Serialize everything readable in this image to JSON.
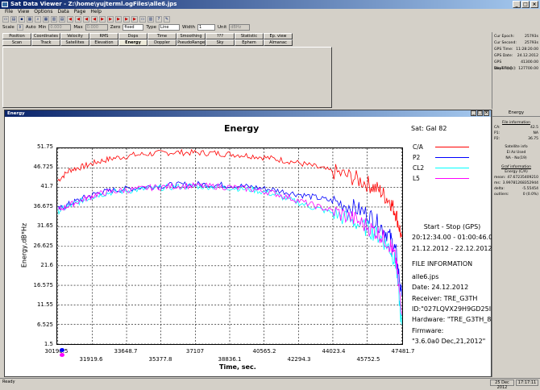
{
  "window": {
    "title": "Sat Data Viewer - Z:\\home\\yujterml.ogFiles\\alle6.jps",
    "min": "_",
    "max": "□",
    "close": "×"
  },
  "menu": [
    "File",
    "View",
    "Options",
    "Data",
    "Page",
    "Help"
  ],
  "toolbar2": {
    "scale_label": "Scale",
    "auto_label": "Auto",
    "min_label": "Min",
    "min_value": "0.000",
    "max_label": "Max",
    "max_value": "0.000",
    "zero_label": "Zero",
    "zero_value": "fixed",
    "type_label": "Type",
    "type_value": "Line",
    "width_label": "Width",
    "width_value": "1",
    "unit_label": "Unit",
    "unit_value": "dBHz"
  },
  "tabs_row1": [
    "Position",
    "Coordinates",
    "Velocity",
    "RMS",
    "Dops",
    "Time",
    "Smoothing",
    "???",
    "Statistic",
    "Ep. view"
  ],
  "tabs_row2": [
    "Scan",
    "Track",
    "Satellites",
    "Elevation",
    "Energy",
    "Doppler",
    "PseudoRange",
    "Sky",
    "Ephem",
    "Almanac"
  ],
  "right_info": [
    {
      "k": "Cur Epoch:",
      "v": "25793s"
    },
    {
      "k": "Cur Second:",
      "v": "25793s"
    },
    {
      "k": "GPS Time:",
      "v": "11:28:20.00"
    },
    {
      "k": "GPS Date:",
      "v": "24.12.2012"
    },
    {
      "k": "GPS DayTm[s]:",
      "v": "41300.00"
    },
    {
      "k": "WeekTm[s]:",
      "v": "127700.00"
    }
  ],
  "energy_window": {
    "title": "Energy"
  },
  "chart_data": {
    "type": "line",
    "title": "Energy",
    "xlabel": "Time, sec.",
    "ylabel": "Energy,dB*Hz",
    "sat_label": "Sat:  Gal   82",
    "yticks": [
      "51.75",
      "46.725",
      "41.7",
      "36.675",
      "31.65",
      "26.625",
      "21.6",
      "16.575",
      "11.55",
      "6.525",
      "1.5"
    ],
    "ylim": [
      1.5,
      51.75
    ],
    "xticks_top": [
      "30190.5",
      "33648.7",
      "37107",
      "40565.2",
      "44023.4",
      "47481.7"
    ],
    "xticks_bottom": [
      "31919.6",
      "35377.8",
      "38836.1",
      "42294.3",
      "45752.5"
    ],
    "xlim": [
      30190.5,
      47481.7
    ],
    "grid": true,
    "series": [
      {
        "name": "C/A",
        "color": "#ff0000",
        "x": [
          30190,
          30800,
          31500,
          32200,
          33000,
          34000,
          35000,
          36000,
          37000,
          38000,
          39000,
          40000,
          41000,
          42000,
          43000,
          44000,
          45000,
          45800,
          46400,
          46900,
          47200,
          47481
        ],
        "y": [
          43.5,
          46.2,
          47.1,
          48.3,
          49.2,
          50.0,
          50.4,
          50.7,
          50.6,
          50.5,
          50.2,
          49.8,
          49.1,
          48.3,
          47.2,
          45.8,
          44.3,
          42.6,
          40.8,
          38.2,
          35.0,
          29.0
        ]
      },
      {
        "name": "P2",
        "color": "#0000ff",
        "x": [
          30190,
          30800,
          31500,
          32200,
          33000,
          34000,
          35000,
          36000,
          37000,
          38000,
          39000,
          40000,
          41000,
          42000,
          43000,
          44000,
          45000,
          45800,
          46400,
          46900,
          47200,
          47481
        ],
        "y": [
          36.0,
          37.5,
          39.0,
          40.3,
          41.0,
          41.5,
          42.0,
          42.3,
          42.5,
          42.4,
          42.2,
          41.8,
          41.1,
          40.2,
          39.3,
          38.2,
          36.7,
          34.8,
          32.0,
          29.0,
          25.0,
          14.0
        ]
      },
      {
        "name": "CL2",
        "color": "#00ffff",
        "x": [
          30190,
          30800,
          31500,
          32200,
          33000,
          34000,
          35000,
          36000,
          37000,
          38000,
          39000,
          40000,
          41000,
          42000,
          43000,
          44000,
          45000,
          45800,
          46400,
          46900,
          47200,
          47481
        ],
        "y": [
          35.6,
          37.0,
          38.5,
          39.8,
          40.5,
          41.0,
          41.5,
          41.8,
          42.0,
          41.9,
          41.6,
          41.1,
          40.0,
          38.3,
          36.6,
          35.2,
          33.0,
          31.0,
          29.0,
          26.0,
          22.0,
          6.5
        ]
      },
      {
        "name": "L5",
        "color": "#ff00ff",
        "x": [
          30190,
          30800,
          31500,
          32200,
          33000,
          34000,
          35000,
          36000,
          37000,
          38000,
          39000,
          40000,
          41000,
          42000,
          43000,
          44000,
          45000,
          45800,
          46400,
          46900,
          47200,
          47481
        ],
        "y": [
          35.8,
          37.2,
          38.7,
          40.0,
          40.7,
          41.2,
          41.7,
          42.0,
          42.1,
          42.0,
          41.7,
          41.2,
          40.3,
          38.8,
          37.2,
          35.7,
          33.8,
          31.6,
          29.6,
          27.0,
          23.0,
          9.0
        ]
      }
    ]
  },
  "file_info": {
    "start_stop": "Start  -  Stop  (GPS)",
    "time_range": "20:12:34.00 - 01:00:46.0",
    "date_range": "21.12.2012 - 22.12.2012",
    "header": "FILE INFORMATION",
    "file": "alle6.jps",
    "date": "Date: 24.12.2012",
    "receiver": "Receiver: TRE_G3TH",
    "id": "ID:\"027LQVX29H9GD25I",
    "hardware": "Hardware: \"TRE_G3TH_8",
    "firmware_label": "Firmware:",
    "firmware": "\"3.6.0a0 Dec,21,2012\""
  },
  "right_panel": {
    "header": "Energy",
    "file_info_title": "File information",
    "rows1": [
      {
        "k": "CA:",
        "v": "42.5"
      },
      {
        "k": "P1:",
        "v": "NA"
      },
      {
        "k": "P2:",
        "v": "36.75"
      }
    ],
    "sat_info": "Satellite info",
    "el_row": "El    Az    Used",
    "na_row": "NA    -   No(19)",
    "graf_info": "Graf information",
    "energy_row": "Energy   (C/A)",
    "rows2": [
      {
        "k": "mean:",
        "v": "47.67235409210"
      },
      {
        "k": "ms:",
        "v": "3.99781268352944"
      },
      {
        "k": "delta:",
        "v": "-5.55454"
      },
      {
        "k": "outliers:",
        "v": "0 (0.0%)"
      }
    ]
  },
  "status": {
    "text": "Ready",
    "date": "25 Dec 2012",
    "time": "17:17:11"
  }
}
